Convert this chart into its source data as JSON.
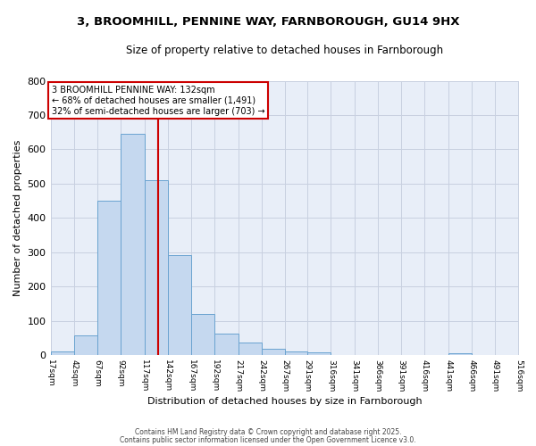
{
  "title1": "3, BROOMHILL, PENNINE WAY, FARNBOROUGH, GU14 9HX",
  "title2": "Size of property relative to detached houses in Farnborough",
  "xlabel": "Distribution of detached houses by size in Farnborough",
  "ylabel": "Number of detached properties",
  "bin_edges": [
    17,
    42,
    67,
    92,
    117,
    142,
    167,
    192,
    217,
    242,
    267,
    291,
    316,
    341,
    366,
    391,
    416,
    441,
    466,
    491,
    516
  ],
  "bar_heights": [
    10,
    57,
    450,
    645,
    510,
    293,
    120,
    63,
    36,
    20,
    10,
    8,
    0,
    0,
    0,
    0,
    0,
    5,
    0,
    0
  ],
  "bar_color": "#c5d8ef",
  "bar_edge_color": "#6aa3d0",
  "property_size": 132,
  "vline_color": "#cc0000",
  "ylim": [
    0,
    800
  ],
  "yticks": [
    0,
    100,
    200,
    300,
    400,
    500,
    600,
    700,
    800
  ],
  "annotation_text": "3 BROOMHILL PENNINE WAY: 132sqm\n← 68% of detached houses are smaller (1,491)\n32% of semi-detached houses are larger (703) →",
  "annotation_box_color": "#ffffff",
  "annotation_box_edge": "#cc0000",
  "footer1": "Contains HM Land Registry data © Crown copyright and database right 2025.",
  "footer2": "Contains public sector information licensed under the Open Government Licence v3.0.",
  "bg_color": "#e8eef8",
  "grid_color": "#c8d0e0"
}
